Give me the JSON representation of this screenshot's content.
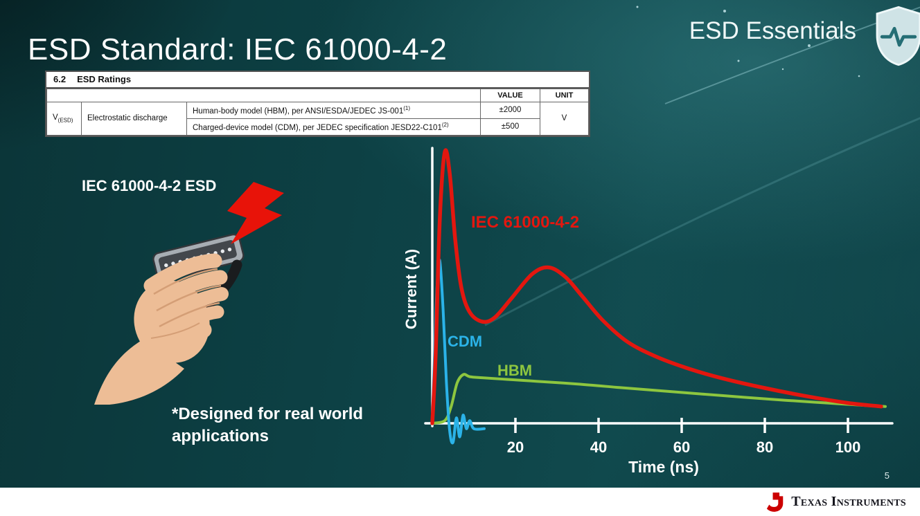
{
  "slide": {
    "title": "ESD Standard: IEC 61000-4-2",
    "series_brand": "ESD Essentials",
    "page_number": "5"
  },
  "ratings_table": {
    "section_number": "6.2",
    "section_title": "ESD Ratings",
    "header_value": "VALUE",
    "header_unit": "UNIT",
    "param_symbol": "V",
    "param_symbol_subscript": "(ESD)",
    "param_name": "Electrostatic discharge",
    "rows": [
      {
        "description": "Human-body model (HBM), per ANSI/ESDA/JEDEC JS-001",
        "footnote": "(1)",
        "value": "±2000"
      },
      {
        "description": "Charged-device model (CDM), per JEDEC specification JESD22-C101",
        "footnote": "(2)",
        "value": "±500"
      }
    ],
    "unit": "V"
  },
  "illustration": {
    "caption": "IEC 61000-4-2 ESD",
    "note": "*Designed for real world\napplications",
    "bolt_color": "#e81309"
  },
  "footer": {
    "logo_text": "Texas Instruments",
    "logo_color": "#cc0000"
  },
  "chart_data": {
    "type": "line",
    "xlabel": "Time (ns)",
    "ylabel": "Current (A)",
    "xlim": [
      0,
      110
    ],
    "ylim": [
      0,
      1
    ],
    "x_ticks": [
      20,
      40,
      60,
      80,
      100
    ],
    "grid": false,
    "legend": "inline-labels",
    "series": [
      {
        "name": "IEC 61000-4-2",
        "color": "#e3170f",
        "width": 5.5,
        "points": [
          [
            0,
            0
          ],
          [
            0.8,
            0.25
          ],
          [
            1.8,
            0.75
          ],
          [
            3,
            1
          ],
          [
            4.2,
            0.92
          ],
          [
            5.5,
            0.68
          ],
          [
            7,
            0.5
          ],
          [
            9,
            0.41
          ],
          [
            12,
            0.375
          ],
          [
            15,
            0.39
          ],
          [
            19,
            0.46
          ],
          [
            24,
            0.55
          ],
          [
            28,
            0.575
          ],
          [
            32,
            0.54
          ],
          [
            36,
            0.47
          ],
          [
            41,
            0.38
          ],
          [
            47,
            0.3
          ],
          [
            54,
            0.245
          ],
          [
            62,
            0.2
          ],
          [
            70,
            0.165
          ],
          [
            80,
            0.13
          ],
          [
            90,
            0.1
          ],
          [
            100,
            0.075
          ],
          [
            108,
            0.062
          ]
        ]
      },
      {
        "name": "CDM",
        "color": "#2bb3e8",
        "width": 4,
        "points": [
          [
            0,
            0
          ],
          [
            0.6,
            0.28
          ],
          [
            1.2,
            0.52
          ],
          [
            1.8,
            0.6
          ],
          [
            2.6,
            0.42
          ],
          [
            3.4,
            0.15
          ],
          [
            4.2,
            -0.03
          ],
          [
            5,
            -0.07
          ],
          [
            5.8,
            0.02
          ],
          [
            6.6,
            -0.05
          ],
          [
            7.4,
            0.03
          ],
          [
            8.2,
            -0.02
          ],
          [
            9,
            0.01
          ],
          [
            10,
            -0.02
          ],
          [
            12.5,
            -0.02
          ]
        ]
      },
      {
        "name": "HBM",
        "color": "#8dc63f",
        "width": 4,
        "points": [
          [
            0,
            0
          ],
          [
            3,
            0.01
          ],
          [
            4.5,
            0.06
          ],
          [
            6,
            0.15
          ],
          [
            7.5,
            0.18
          ],
          [
            9,
            0.172
          ],
          [
            12,
            0.168
          ],
          [
            18,
            0.162
          ],
          [
            25,
            0.155
          ],
          [
            35,
            0.145
          ],
          [
            45,
            0.132
          ],
          [
            55,
            0.12
          ],
          [
            65,
            0.108
          ],
          [
            75,
            0.096
          ],
          [
            85,
            0.085
          ],
          [
            95,
            0.075
          ],
          [
            105,
            0.065
          ],
          [
            109,
            0.062
          ]
        ]
      }
    ]
  }
}
